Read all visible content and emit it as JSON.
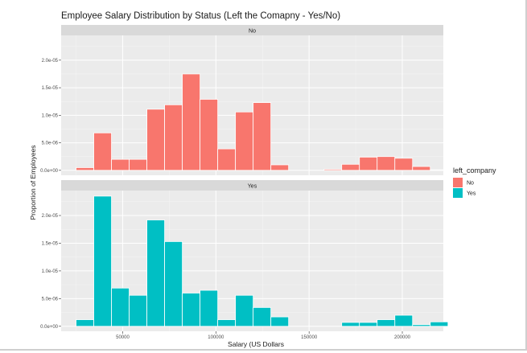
{
  "chart_data": {
    "type": "bar",
    "title": "Employee Salary Distribution by Status (Left the Comapny - Yes/No)",
    "xlabel": "Salary (US Dollars",
    "ylabel": "Proportion of Employees",
    "xlim": [
      17000,
      222000
    ],
    "ylim": [
      -9e-07,
      2.45e-05
    ],
    "x_ticks": [
      50000,
      100000,
      150000,
      200000
    ],
    "x_tick_labels": [
      "50000",
      "100000",
      "150000",
      "200000"
    ],
    "y_ticks": [
      0,
      5e-06,
      1e-05,
      1.5e-05,
      2e-05
    ],
    "y_tick_labels": [
      "0.0e+00",
      "5.0e-06",
      "1.0e-05",
      "1.5e-05",
      "2.0e-05"
    ],
    "bin_width": 9500,
    "grid": true,
    "legend": {
      "title": "left_company",
      "position": "right",
      "entries": [
        {
          "label": "No",
          "color": "#f8766d"
        },
        {
          "label": "Yes",
          "color": "#00bfc4"
        }
      ]
    },
    "panels": [
      {
        "label": "No",
        "color": "#f8766d",
        "bins": [
          {
            "x0": 25000,
            "value": 5e-07
          },
          {
            "x0": 34500,
            "value": 6.8e-06
          },
          {
            "x0": 44000,
            "value": 2e-06
          },
          {
            "x0": 53500,
            "value": 2e-06
          },
          {
            "x0": 63000,
            "value": 1.11e-05
          },
          {
            "x0": 72500,
            "value": 1.19e-05
          },
          {
            "x0": 82000,
            "value": 1.75e-05
          },
          {
            "x0": 91500,
            "value": 1.29e-05
          },
          {
            "x0": 101000,
            "value": 3.9e-06
          },
          {
            "x0": 110500,
            "value": 1.06e-05
          },
          {
            "x0": 120000,
            "value": 1.23e-05
          },
          {
            "x0": 129500,
            "value": 1e-06
          },
          {
            "x0": 139000,
            "value": 0
          },
          {
            "x0": 148500,
            "value": 0
          },
          {
            "x0": 158000,
            "value": 2e-07
          },
          {
            "x0": 167500,
            "value": 1.1e-06
          },
          {
            "x0": 177000,
            "value": 2.4e-06
          },
          {
            "x0": 186500,
            "value": 2.5e-06
          },
          {
            "x0": 196000,
            "value": 2.2e-06
          },
          {
            "x0": 205500,
            "value": 7e-07
          },
          {
            "x0": 215000,
            "value": 1e-07
          }
        ]
      },
      {
        "label": "Yes",
        "color": "#00bfc4",
        "bins": [
          {
            "x0": 25000,
            "value": 1.2e-06
          },
          {
            "x0": 34500,
            "value": 2.35e-05
          },
          {
            "x0": 44000,
            "value": 6.9e-06
          },
          {
            "x0": 53500,
            "value": 5.6e-06
          },
          {
            "x0": 63000,
            "value": 1.92e-05
          },
          {
            "x0": 72500,
            "value": 1.53e-05
          },
          {
            "x0": 82000,
            "value": 6e-06
          },
          {
            "x0": 91500,
            "value": 6.5e-06
          },
          {
            "x0": 101000,
            "value": 1.2e-06
          },
          {
            "x0": 110500,
            "value": 5.6e-06
          },
          {
            "x0": 120000,
            "value": 3.4e-06
          },
          {
            "x0": 129500,
            "value": 1.7e-06
          },
          {
            "x0": 139000,
            "value": 0
          },
          {
            "x0": 148500,
            "value": 0
          },
          {
            "x0": 158000,
            "value": 0
          },
          {
            "x0": 167500,
            "value": 7e-07
          },
          {
            "x0": 177000,
            "value": 7e-07
          },
          {
            "x0": 186500,
            "value": 1.2e-06
          },
          {
            "x0": 196000,
            "value": 2e-06
          },
          {
            "x0": 205500,
            "value": 3e-07
          },
          {
            "x0": 215000,
            "value": 8e-07
          }
        ]
      }
    ]
  }
}
